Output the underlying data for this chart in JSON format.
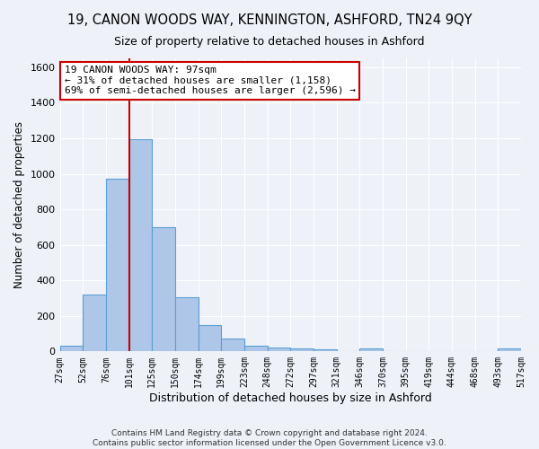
{
  "title": "19, CANON WOODS WAY, KENNINGTON, ASHFORD, TN24 9QY",
  "subtitle": "Size of property relative to detached houses in Ashford",
  "xlabel": "Distribution of detached houses by size in Ashford",
  "ylabel": "Number of detached properties",
  "bar_values": [
    30,
    320,
    970,
    1195,
    700,
    305,
    150,
    70,
    30,
    20,
    15,
    10,
    0,
    15,
    0,
    0,
    0,
    0,
    0,
    15
  ],
  "bar_labels": [
    "27sqm",
    "52sqm",
    "76sqm",
    "101sqm",
    "125sqm",
    "150sqm",
    "174sqm",
    "199sqm",
    "223sqm",
    "248sqm",
    "272sqm",
    "297sqm",
    "321sqm",
    "346sqm",
    "370sqm",
    "395sqm",
    "419sqm",
    "444sqm",
    "468sqm",
    "493sqm",
    "517sqm"
  ],
  "bar_color": "#aec6e8",
  "bar_edgecolor": "#5a9fd4",
  "vline_color": "#cc0000",
  "annotation_text": "19 CANON WOODS WAY: 97sqm\n← 31% of detached houses are smaller (1,158)\n69% of semi-detached houses are larger (2,596) →",
  "annotation_box_edgecolor": "#cc0000",
  "ylim": [
    0,
    1650
  ],
  "yticks": [
    0,
    200,
    400,
    600,
    800,
    1000,
    1200,
    1400,
    1600
  ],
  "bg_color": "#eef2f8",
  "grid_color": "#ffffff",
  "footer_text": "Contains HM Land Registry data © Crown copyright and database right 2024.\nContains public sector information licensed under the Open Government Licence v3.0.",
  "fig_width": 6.0,
  "fig_height": 5.0
}
